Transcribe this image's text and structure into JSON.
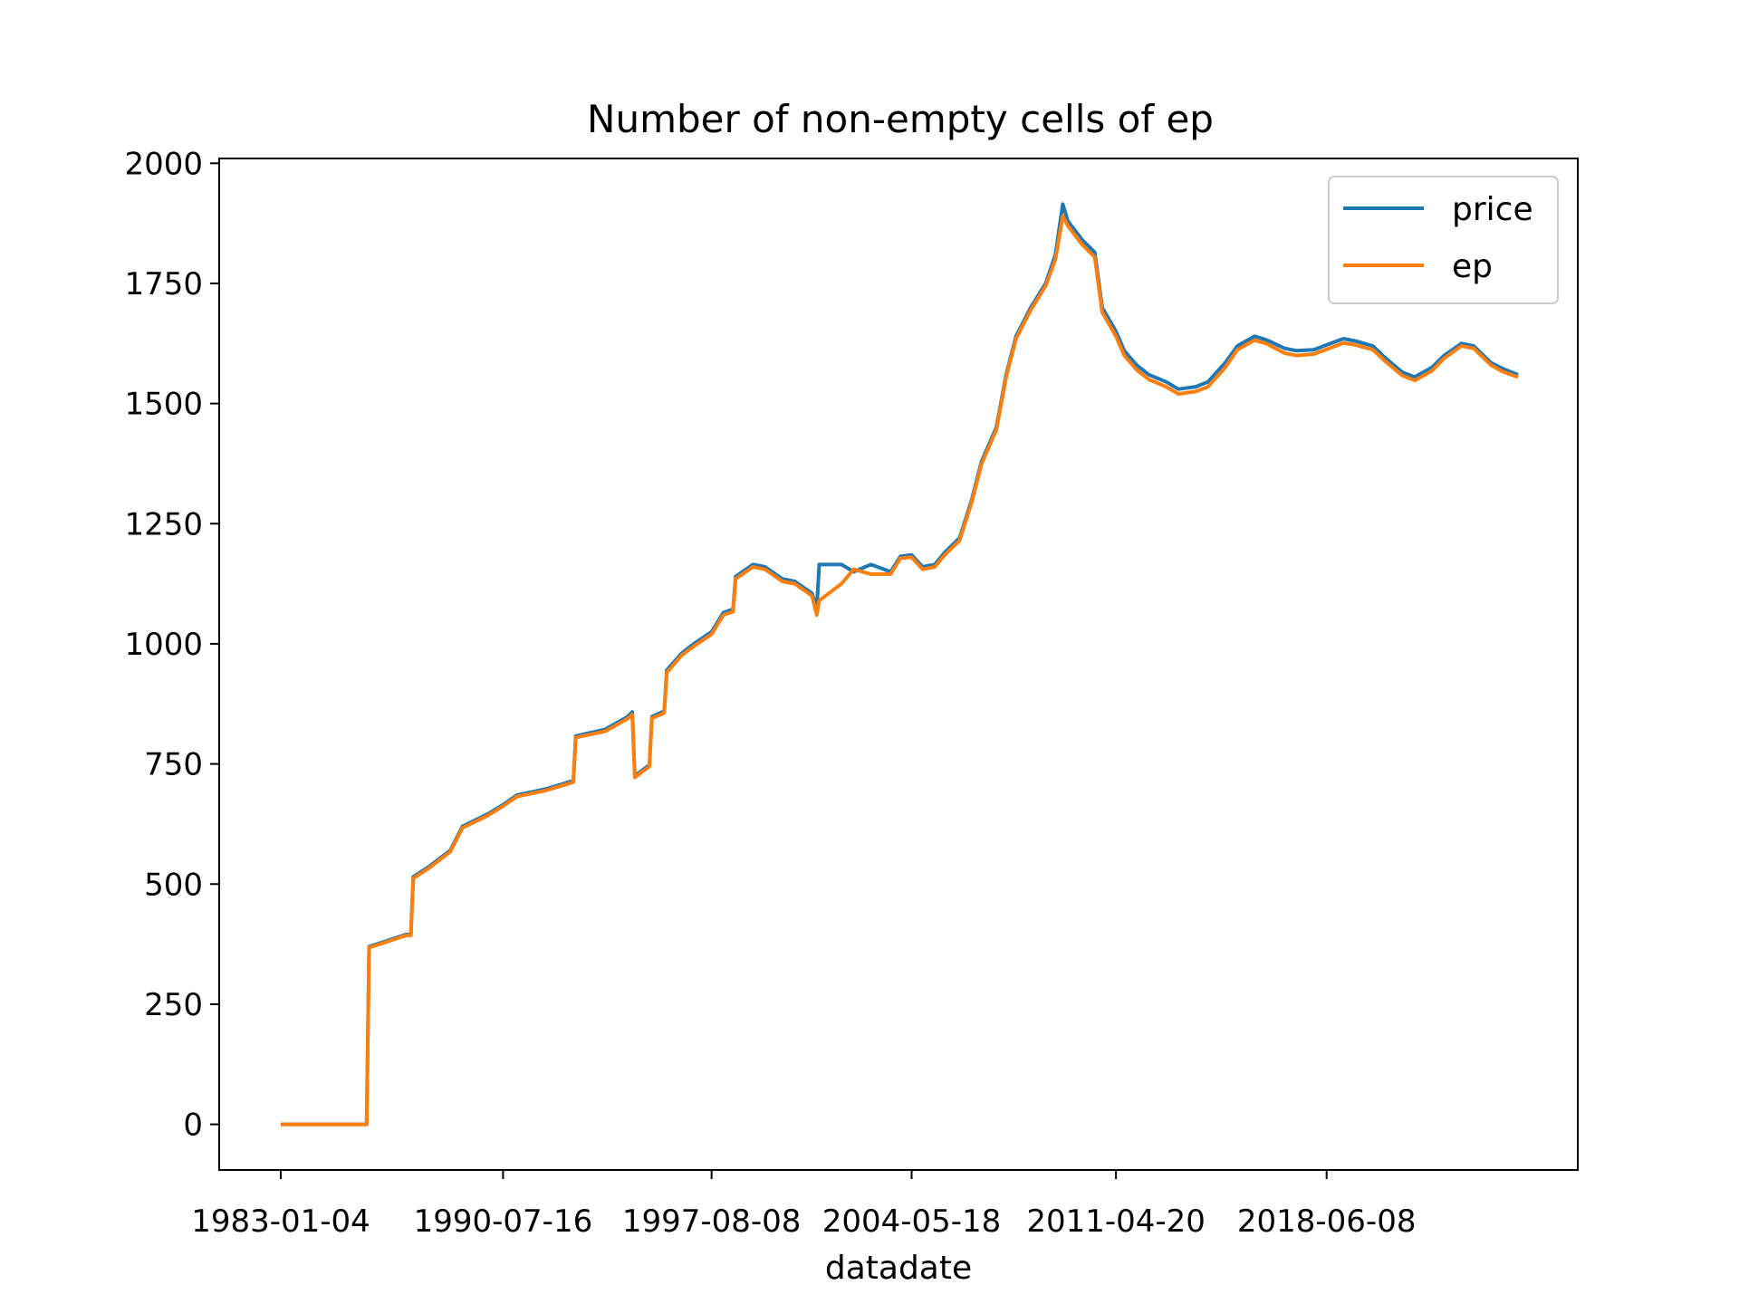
{
  "chart_data": {
    "type": "line",
    "title": "Number of non-empty cells of ep",
    "xlabel": "datadate",
    "ylabel": "",
    "x_tick_labels": [
      "1983-01-04",
      "1990-07-16",
      "1997-08-08",
      "2004-05-18",
      "2011-04-20",
      "2018-06-08"
    ],
    "y_ticks": [
      0,
      250,
      500,
      750,
      1000,
      1250,
      1500,
      1750,
      2000
    ],
    "y_tick_labels": [
      "0",
      "250",
      "500",
      "750",
      "1000",
      "1250",
      "1500",
      "1750",
      "2000"
    ],
    "ylim": [
      -95,
      2010
    ],
    "grid": false,
    "legend_position": "top-right",
    "series": [
      {
        "name": "price",
        "color": "#1f77b4",
        "points": [
          [
            "1983-01-04",
            0
          ],
          [
            "1985-12-01",
            0
          ],
          [
            "1986-01-01",
            370
          ],
          [
            "1986-06-01",
            378
          ],
          [
            "1987-04-01",
            395
          ],
          [
            "1987-06-01",
            395
          ],
          [
            "1987-07-01",
            515
          ],
          [
            "1988-01-01",
            535
          ],
          [
            "1988-10-01",
            570
          ],
          [
            "1989-03-01",
            620
          ],
          [
            "1990-01-01",
            645
          ],
          [
            "1990-07-16",
            665
          ],
          [
            "1991-01-01",
            685
          ],
          [
            "1992-01-01",
            698
          ],
          [
            "1992-12-01",
            715
          ],
          [
            "1993-01-01",
            808
          ],
          [
            "1994-01-01",
            822
          ],
          [
            "1994-10-01",
            848
          ],
          [
            "1994-12-01",
            858
          ],
          [
            "1995-01-01",
            725
          ],
          [
            "1995-07-01",
            748
          ],
          [
            "1995-08-01",
            848
          ],
          [
            "1996-01-01",
            860
          ],
          [
            "1996-02-01",
            945
          ],
          [
            "1996-08-01",
            980
          ],
          [
            "1997-01-01",
            1000
          ],
          [
            "1997-08-08",
            1025
          ],
          [
            "1998-01-01",
            1065
          ],
          [
            "1998-05-01",
            1072
          ],
          [
            "1998-06-01",
            1140
          ],
          [
            "1999-01-01",
            1165
          ],
          [
            "1999-06-01",
            1160
          ],
          [
            "2000-01-01",
            1135
          ],
          [
            "2000-06-01",
            1130
          ],
          [
            "2001-01-01",
            1105
          ],
          [
            "2001-03-01",
            1075
          ],
          [
            "2001-04-01",
            1165
          ],
          [
            "2002-01-01",
            1165
          ],
          [
            "2002-06-01",
            1150
          ],
          [
            "2003-01-01",
            1165
          ],
          [
            "2003-09-01",
            1150
          ],
          [
            "2004-01-01",
            1182
          ],
          [
            "2004-05-18",
            1185
          ],
          [
            "2004-10-01",
            1160
          ],
          [
            "2005-03-01",
            1165
          ],
          [
            "2005-07-01",
            1190
          ],
          [
            "2006-01-01",
            1220
          ],
          [
            "2006-06-01",
            1300
          ],
          [
            "2006-10-01",
            1380
          ],
          [
            "2007-04-01",
            1450
          ],
          [
            "2007-08-01",
            1560
          ],
          [
            "2007-12-01",
            1640
          ],
          [
            "2008-06-01",
            1700
          ],
          [
            "2008-12-01",
            1750
          ],
          [
            "2009-04-01",
            1810
          ],
          [
            "2009-07-01",
            1915
          ],
          [
            "2009-09-01",
            1880
          ],
          [
            "2010-03-01",
            1840
          ],
          [
            "2010-08-01",
            1815
          ],
          [
            "2010-11-01",
            1700
          ],
          [
            "2011-04-20",
            1650
          ],
          [
            "2011-08-01",
            1610
          ],
          [
            "2012-01-01",
            1580
          ],
          [
            "2012-06-01",
            1560
          ],
          [
            "2013-01-01",
            1545
          ],
          [
            "2013-06-01",
            1530
          ],
          [
            "2014-01-01",
            1535
          ],
          [
            "2014-06-01",
            1545
          ],
          [
            "2015-01-01",
            1585
          ],
          [
            "2015-06-01",
            1620
          ],
          [
            "2016-01-01",
            1640
          ],
          [
            "2016-06-01",
            1632
          ],
          [
            "2017-01-01",
            1615
          ],
          [
            "2017-06-01",
            1610
          ],
          [
            "2018-01-01",
            1612
          ],
          [
            "2018-06-08",
            1622
          ],
          [
            "2019-01-01",
            1635
          ],
          [
            "2019-06-01",
            1630
          ],
          [
            "2020-01-01",
            1620
          ],
          [
            "2020-06-01",
            1595
          ],
          [
            "2021-01-01",
            1565
          ],
          [
            "2021-06-01",
            1555
          ],
          [
            "2022-01-01",
            1575
          ],
          [
            "2022-06-01",
            1600
          ],
          [
            "2023-01-01",
            1625
          ],
          [
            "2023-06-01",
            1620
          ],
          [
            "2024-01-01",
            1585
          ],
          [
            "2024-06-01",
            1572
          ],
          [
            "2024-12-01",
            1560
          ]
        ]
      },
      {
        "name": "ep",
        "color": "#ff7f0e",
        "points": [
          [
            "1983-01-04",
            0
          ],
          [
            "1985-12-01",
            0
          ],
          [
            "1986-01-01",
            368
          ],
          [
            "1986-06-01",
            376
          ],
          [
            "1987-04-01",
            393
          ],
          [
            "1987-06-01",
            393
          ],
          [
            "1987-07-01",
            512
          ],
          [
            "1988-01-01",
            532
          ],
          [
            "1988-10-01",
            567
          ],
          [
            "1989-03-01",
            617
          ],
          [
            "1990-01-01",
            642
          ],
          [
            "1990-07-16",
            662
          ],
          [
            "1991-01-01",
            682
          ],
          [
            "1992-01-01",
            695
          ],
          [
            "1992-12-01",
            712
          ],
          [
            "1993-01-01",
            805
          ],
          [
            "1994-01-01",
            818
          ],
          [
            "1994-10-01",
            844
          ],
          [
            "1994-12-01",
            853
          ],
          [
            "1995-01-01",
            722
          ],
          [
            "1995-07-01",
            745
          ],
          [
            "1995-08-01",
            845
          ],
          [
            "1996-01-01",
            856
          ],
          [
            "1996-02-01",
            940
          ],
          [
            "1996-08-01",
            976
          ],
          [
            "1997-01-01",
            995
          ],
          [
            "1997-08-08",
            1020
          ],
          [
            "1998-01-01",
            1060
          ],
          [
            "1998-05-01",
            1067
          ],
          [
            "1998-06-01",
            1135
          ],
          [
            "1999-01-01",
            1160
          ],
          [
            "1999-06-01",
            1155
          ],
          [
            "2000-01-01",
            1130
          ],
          [
            "2000-06-01",
            1125
          ],
          [
            "2001-01-01",
            1100
          ],
          [
            "2001-03-01",
            1060
          ],
          [
            "2001-04-01",
            1090
          ],
          [
            "2002-01-01",
            1125
          ],
          [
            "2002-06-01",
            1155
          ],
          [
            "2003-01-01",
            1145
          ],
          [
            "2003-09-01",
            1145
          ],
          [
            "2004-01-01",
            1178
          ],
          [
            "2004-05-18",
            1180
          ],
          [
            "2004-10-01",
            1155
          ],
          [
            "2005-03-01",
            1160
          ],
          [
            "2005-07-01",
            1185
          ],
          [
            "2006-01-01",
            1215
          ],
          [
            "2006-06-01",
            1295
          ],
          [
            "2006-10-01",
            1375
          ],
          [
            "2007-04-01",
            1445
          ],
          [
            "2007-08-01",
            1555
          ],
          [
            "2007-12-01",
            1635
          ],
          [
            "2008-06-01",
            1695
          ],
          [
            "2008-12-01",
            1745
          ],
          [
            "2009-04-01",
            1800
          ],
          [
            "2009-07-01",
            1890
          ],
          [
            "2009-09-01",
            1870
          ],
          [
            "2010-03-01",
            1830
          ],
          [
            "2010-08-01",
            1805
          ],
          [
            "2010-11-01",
            1690
          ],
          [
            "2011-04-20",
            1640
          ],
          [
            "2011-08-01",
            1600
          ],
          [
            "2012-01-01",
            1570
          ],
          [
            "2012-06-01",
            1550
          ],
          [
            "2013-01-01",
            1535
          ],
          [
            "2013-06-01",
            1520
          ],
          [
            "2014-01-01",
            1525
          ],
          [
            "2014-06-01",
            1535
          ],
          [
            "2015-01-01",
            1575
          ],
          [
            "2015-06-01",
            1612
          ],
          [
            "2016-01-01",
            1632
          ],
          [
            "2016-06-01",
            1624
          ],
          [
            "2017-01-01",
            1605
          ],
          [
            "2017-06-01",
            1600
          ],
          [
            "2018-01-01",
            1603
          ],
          [
            "2018-06-08",
            1613
          ],
          [
            "2019-01-01",
            1626
          ],
          [
            "2019-06-01",
            1622
          ],
          [
            "2020-01-01",
            1612
          ],
          [
            "2020-06-01",
            1588
          ],
          [
            "2021-01-01",
            1558
          ],
          [
            "2021-06-01",
            1548
          ],
          [
            "2022-01-01",
            1568
          ],
          [
            "2022-06-01",
            1594
          ],
          [
            "2023-01-01",
            1620
          ],
          [
            "2023-06-01",
            1615
          ],
          [
            "2024-01-01",
            1580
          ],
          [
            "2024-06-01",
            1566
          ],
          [
            "2024-12-01",
            1555
          ]
        ]
      }
    ]
  }
}
